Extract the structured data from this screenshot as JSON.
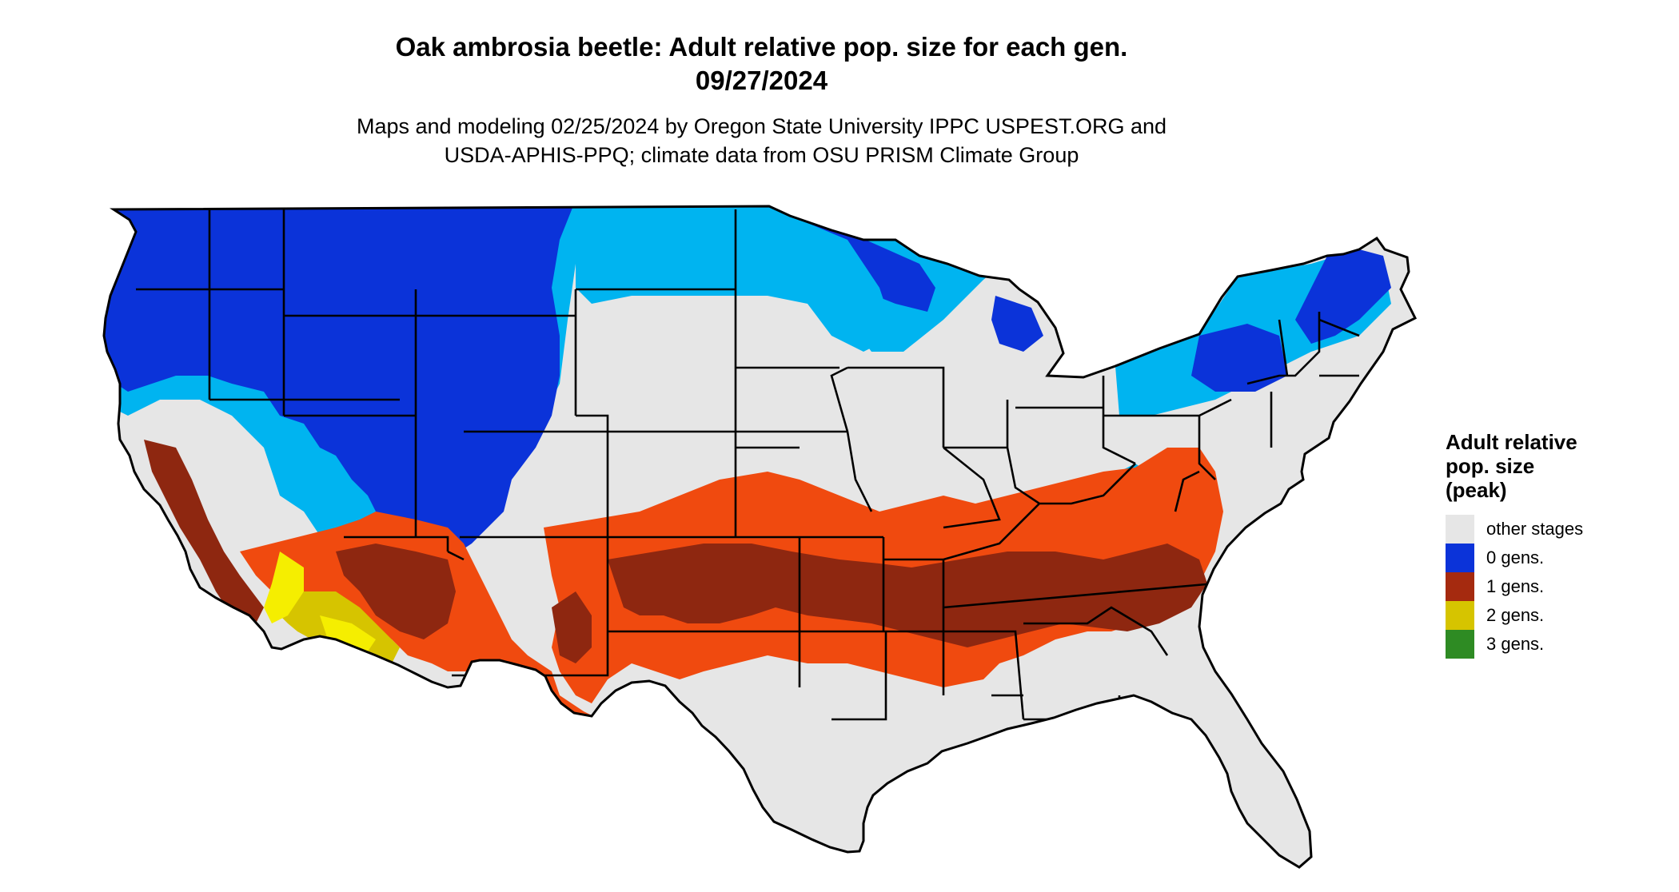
{
  "title": {
    "line1": "Oak ambrosia beetle: Adult relative pop. size for each gen.",
    "line2": "09/27/2024"
  },
  "subtitle": {
    "line1": "Maps and modeling 02/25/2024 by Oregon State University IPPC USPEST.ORG and",
    "line2": "USDA-APHIS-PPQ; climate data from OSU PRISM Climate Group"
  },
  "legend": {
    "title_lines": [
      "Adult relative",
      "pop. size",
      "(peak)"
    ],
    "items": [
      {
        "label": "other stages",
        "color": "#e6e6e6"
      },
      {
        "label": "0 gens.",
        "color": "#0b33d9"
      },
      {
        "label": "1 gens.",
        "color": "#a52a0f"
      },
      {
        "label": "2 gens.",
        "color": "#d6c400"
      },
      {
        "label": "3 gens.",
        "color": "#2e8b23"
      }
    ]
  },
  "map": {
    "region": "Contiguous United States",
    "colors": {
      "other": "#e6e6e6",
      "zero_dark": "#0b33d9",
      "zero_light": "#00b4f0",
      "one_dark": "#8e2710",
      "one_light": "#f04a0f",
      "two": "#d6c400",
      "two_bright": "#f5ee00",
      "border": "#000000"
    }
  }
}
